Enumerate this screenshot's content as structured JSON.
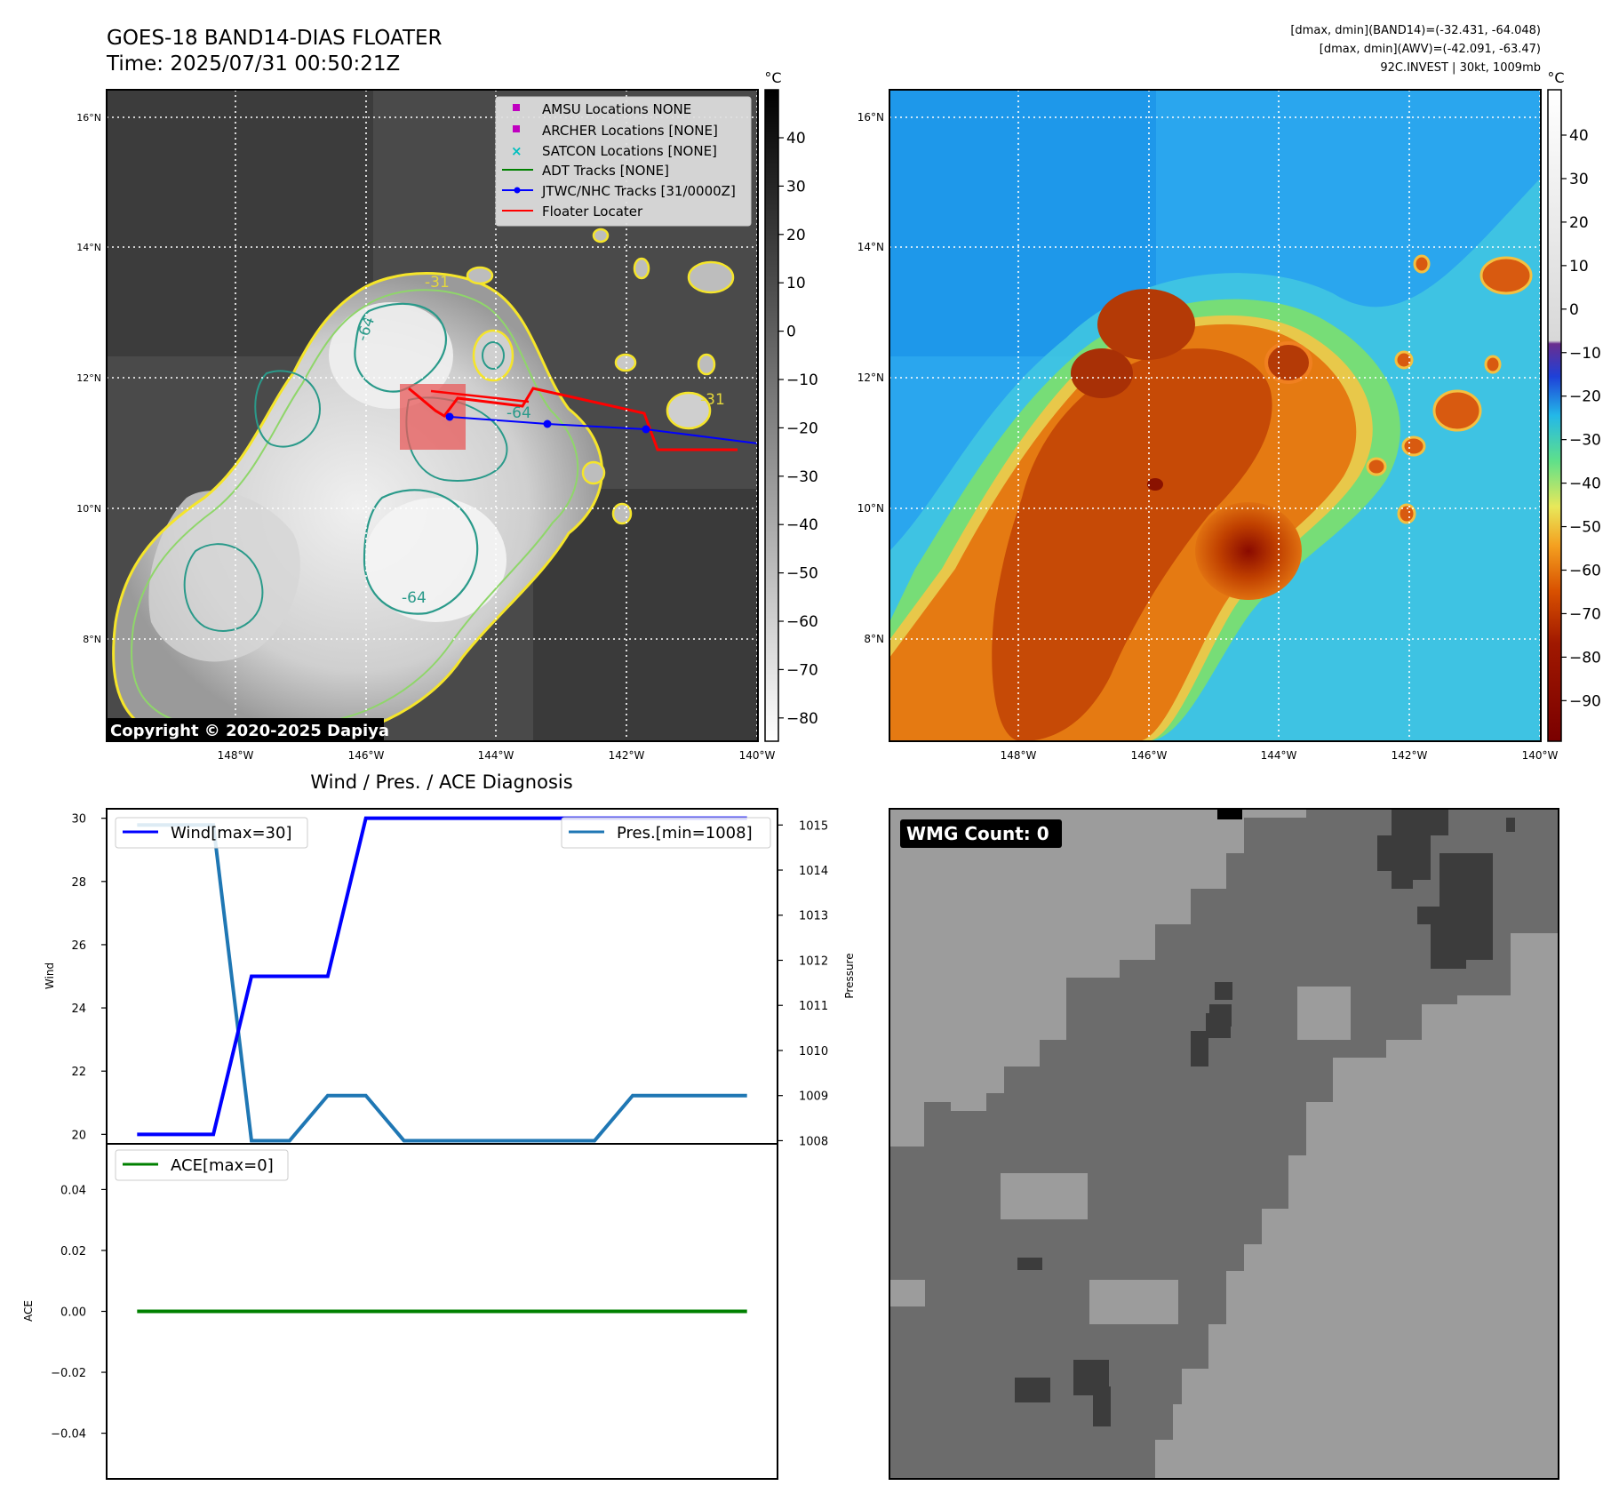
{
  "header": {
    "title": "GOES-18 BAND14-DIAS FLOATER",
    "time": "Time: 2025/07/31 00:50:21Z",
    "info_lines": [
      "[dmax, dmin](BAND14)=(-32.431, -64.048)",
      "[dmax, dmin](AWV)=(-42.091, -63.47)",
      "92C.INVEST | 30kt, 1009mb"
    ]
  },
  "copyright": "Copyright © 2020-2025 Dapiya",
  "map": {
    "lat_ticks": [
      "16°N",
      "14°N",
      "12°N",
      "10°N",
      "8°N"
    ],
    "lon_ticks": [
      "148°W",
      "146°W",
      "144°W",
      "142°W",
      "140°W"
    ],
    "contour_labels": [
      "-31",
      "-64",
      "-64",
      "-64",
      "-31"
    ],
    "legend": [
      {
        "label": "AMSU Locations NONE",
        "marker": "square",
        "color": "#c000c0"
      },
      {
        "label": "ARCHER Locations [NONE]",
        "marker": "square",
        "color": "#c000c0"
      },
      {
        "label": "SATCON Locations [NONE]",
        "marker": "x",
        "color": "#00bfbf"
      },
      {
        "label": "ADT Tracks [NONE]",
        "marker": "line",
        "color": "#008000"
      },
      {
        "label": "JTWC/NHC Tracks [31/0000Z]",
        "marker": "line-dot",
        "color": "#0000ff"
      },
      {
        "label": "Floater Locater",
        "marker": "line",
        "color": "#ff0000"
      }
    ],
    "colorbar_unit": "°C",
    "ir_colorbar_ticks": [
      "40",
      "30",
      "20",
      "10",
      "0",
      "−10",
      "−20",
      "−30",
      "−40",
      "−50",
      "−60",
      "−70",
      "−80"
    ],
    "awv_colorbar_ticks": [
      "40",
      "30",
      "20",
      "10",
      "0",
      "−10",
      "−20",
      "−30",
      "−40",
      "−50",
      "−60",
      "−70",
      "−80",
      "−90"
    ]
  },
  "diag": {
    "title": "Wind / Pres. / ACE Diagnosis",
    "wind_legend": "Wind[max=30]",
    "pres_legend": "Pres.[min=1008]",
    "ace_legend": "ACE[max=0]",
    "wind_axis_label": "Wind",
    "pres_axis_label": "Pressure",
    "ace_axis_label": "ACE"
  },
  "wmg": {
    "label": "WMG Count: 0"
  },
  "colors": {
    "wind": "#0000ff",
    "pressure": "#1f77b4",
    "ace": "#008000",
    "floater": "#ff0000",
    "jtwc": "#0000ff"
  },
  "chart_data": [
    {
      "type": "line",
      "series": [
        {
          "name": "Wind[max=30]",
          "x": [
            0,
            1,
            2,
            3,
            4,
            5,
            6,
            7,
            8,
            9,
            10,
            11,
            12,
            13,
            14,
            15,
            16
          ],
          "values": [
            20,
            20,
            20,
            25,
            25,
            25,
            30,
            30,
            30,
            30,
            30,
            30,
            30,
            30,
            30,
            30,
            30
          ]
        },
        {
          "name": "Pres.[min=1008]",
          "x": [
            0,
            1,
            2,
            3,
            4,
            5,
            6,
            7,
            8,
            9,
            10,
            11,
            12,
            13,
            14,
            15,
            16
          ],
          "values": [
            1015,
            1015,
            1015,
            1008,
            1008,
            1009,
            1009,
            1008,
            1008,
            1008,
            1008,
            1008,
            1008,
            1009,
            1009,
            1009,
            1009
          ]
        }
      ],
      "ylabel": "Wind",
      "ylim": [
        19.7,
        30.3
      ],
      "y2label": "Pressure",
      "y2lim": [
        1007.93,
        1015.36
      ],
      "yticks": [
        20,
        22,
        24,
        26,
        28,
        30
      ],
      "y2ticks": [
        1008,
        1009,
        1010,
        1011,
        1012,
        1013,
        1014,
        1015
      ]
    },
    {
      "type": "line",
      "series": [
        {
          "name": "ACE[max=0]",
          "x": [
            0,
            16
          ],
          "values": [
            0,
            0
          ]
        }
      ],
      "ylabel": "ACE",
      "ylim": [
        -0.055,
        0.055
      ],
      "yticks": [
        0.04,
        0.02,
        0.0,
        -0.02,
        -0.04
      ],
      "ytick_labels": [
        "0.04",
        "0.02",
        "0.00",
        "−0.02",
        "−0.04"
      ]
    }
  ]
}
